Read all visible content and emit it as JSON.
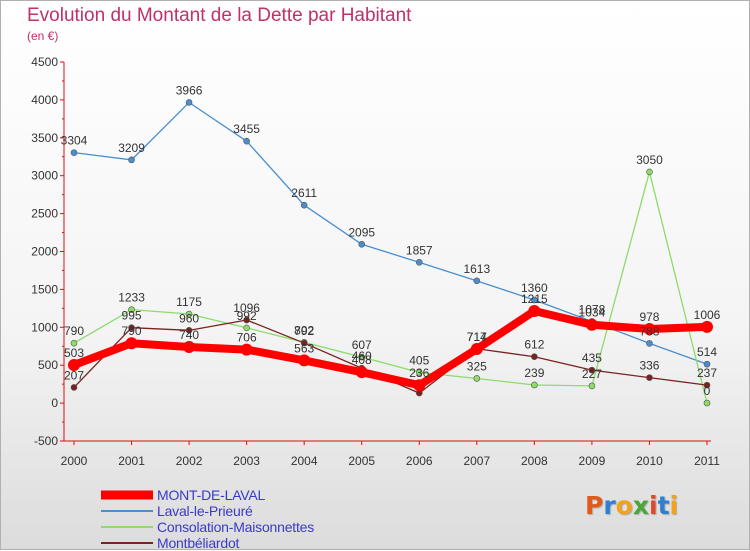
{
  "title": "Evolution du Montant de la Dette par Habitant",
  "subtitle": "(en €)",
  "logo": {
    "letters": [
      "P",
      "r",
      "o",
      "x",
      "i",
      "t",
      "i"
    ],
    "colors": [
      "#e05a1a",
      "#2f7fd0",
      "#f3a21d",
      "#4aa63a",
      "#e0482a",
      "#2f7fd0",
      "#f3a21d"
    ]
  },
  "chart_data": {
    "type": "line",
    "x": [
      "2000",
      "2001",
      "2002",
      "2003",
      "2004",
      "2005",
      "2006",
      "2007",
      "2008",
      "2009",
      "2010",
      "2011"
    ],
    "y_ticks": [
      -500,
      0,
      500,
      1000,
      1500,
      2000,
      2500,
      3000,
      3500,
      4000,
      4500
    ],
    "ylim": [
      -500,
      4500
    ],
    "grid": false,
    "legend_position": "bottom-left",
    "series": [
      {
        "name": "MONT-DE-LAVAL",
        "color": "#ff0000",
        "values": [
          503,
          790,
          740,
          706,
          563,
          408,
          236,
          714,
          1215,
          1034,
          978,
          1006
        ],
        "labels": [
          "503",
          "790",
          "740",
          "706",
          "563",
          "408",
          "236",
          "714",
          "1215",
          "1034",
          "978",
          "1006"
        ]
      },
      {
        "name": "Laval-le-Prieuré",
        "color": "#4a8ed0",
        "values": [
          3304,
          3209,
          3966,
          3455,
          2611,
          2095,
          1857,
          1613,
          1360,
          1078,
          788,
          514
        ],
        "labels": [
          "3304",
          "3209",
          "3966",
          "3455",
          "2611",
          "2095",
          "1857",
          "1613",
          "1360",
          "1078",
          "788",
          "514"
        ]
      },
      {
        "name": "Consolation-Maisonnettes",
        "color": "#8cdc6a",
        "values": [
          790,
          1233,
          1175,
          992,
          802,
          607,
          405,
          325,
          239,
          227,
          3050,
          0
        ],
        "labels": [
          "790",
          "1233",
          "1175",
          "992",
          "802",
          "607",
          "405",
          "325",
          "239",
          "227",
          "3050",
          "0"
        ]
      },
      {
        "name": "Montbéliardot",
        "color": "#7a2222",
        "values": [
          207,
          995,
          960,
          1096,
          792,
          460,
          132,
          717,
          612,
          435,
          336,
          237
        ],
        "labels": [
          "207",
          "995",
          "960",
          "1096",
          "792",
          "460",
          "",
          "717",
          "612",
          "435",
          "336",
          "237"
        ]
      }
    ]
  }
}
